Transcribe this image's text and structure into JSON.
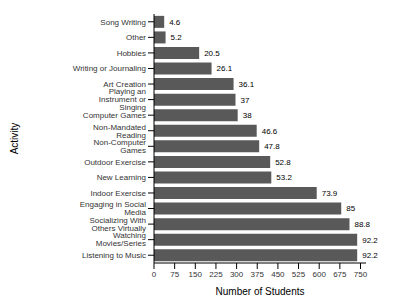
{
  "chart_data": {
    "type": "bar",
    "orientation": "horizontal",
    "x_label": "Number of Students",
    "y_label": "Activity",
    "categories": [
      "Song Writing",
      "Other",
      "Hobbies",
      "Writing or Journaling",
      "Art Creation",
      "Playing an Instrument or Singing",
      "Computer Games",
      "Non-Mandated Reading",
      "Non-Computer Games",
      "Outdoor Exercise",
      "New Learning",
      "Indoor Exercise",
      "Engaging in Social Media",
      "Socializing With Others Virtually",
      "Watching Movies/Series",
      "Listening to Music"
    ],
    "values": [
      37,
      42,
      164,
      209,
      289,
      296,
      304,
      373,
      382,
      422,
      426,
      591,
      680,
      710,
      738,
      738
    ],
    "percentages": [
      4.6,
      5.2,
      20.5,
      26.1,
      36.1,
      37,
      38,
      46.6,
      47.8,
      52.8,
      53.2,
      73.9,
      85,
      88.8,
      92.2,
      92.2
    ],
    "color": "#595959",
    "xlim": [
      0,
      770
    ],
    "xticks": [
      0,
      75,
      150,
      225,
      300,
      375,
      450,
      525,
      600,
      675,
      750
    ],
    "grid": false
  }
}
